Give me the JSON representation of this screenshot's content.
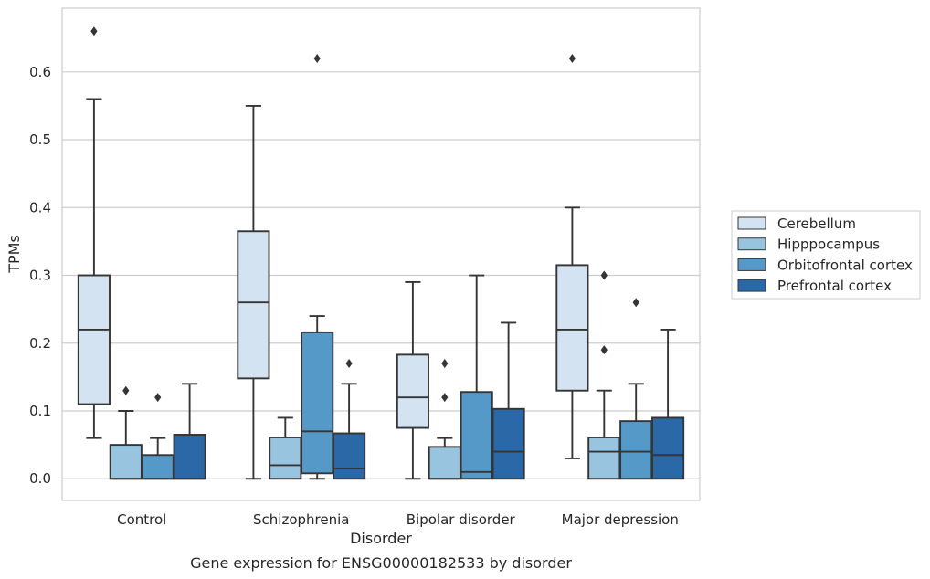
{
  "chart_data": {
    "type": "box",
    "caption": "Gene expression for ENSG00000182533 by disorder",
    "xlabel": "Disorder",
    "ylabel": "TPMs",
    "ylim": [
      -0.032,
      0.694
    ],
    "yticks": [
      "0.0",
      "0.1",
      "0.2",
      "0.3",
      "0.4",
      "0.5",
      "0.6"
    ],
    "grid": true,
    "legend_position": "right",
    "categories": [
      "Control",
      "Schizophrenia",
      "Bipolar disorder",
      "Major depression"
    ],
    "series": [
      {
        "name": "Cerebellum",
        "color": "#d3e3f1",
        "boxes": [
          {
            "whislo": 0.06,
            "q1": 0.11,
            "med": 0.22,
            "q3": 0.3,
            "whishi": 0.56,
            "fliers": [
              0.66
            ]
          },
          {
            "whislo": 0.0,
            "q1": 0.148,
            "med": 0.26,
            "q3": 0.365,
            "whishi": 0.55,
            "fliers": []
          },
          {
            "whislo": 0.0,
            "q1": 0.075,
            "med": 0.12,
            "q3": 0.183,
            "whishi": 0.29,
            "fliers": []
          },
          {
            "whislo": 0.03,
            "q1": 0.13,
            "med": 0.22,
            "q3": 0.315,
            "whishi": 0.4,
            "fliers": [
              0.62
            ]
          }
        ]
      },
      {
        "name": "Hipppocampus",
        "color": "#99c4e0",
        "boxes": [
          {
            "whislo": 0.0,
            "q1": 0.0,
            "med": 0.0,
            "q3": 0.05,
            "whishi": 0.1,
            "fliers": [
              0.13
            ]
          },
          {
            "whislo": 0.0,
            "q1": 0.0,
            "med": 0.02,
            "q3": 0.061,
            "whishi": 0.09,
            "fliers": []
          },
          {
            "whislo": 0.0,
            "q1": 0.0,
            "med": 0.0,
            "q3": 0.047,
            "whishi": 0.06,
            "fliers": [
              0.17,
              0.12
            ]
          },
          {
            "whislo": 0.0,
            "q1": 0.0,
            "med": 0.04,
            "q3": 0.061,
            "whishi": 0.13,
            "fliers": [
              0.3,
              0.19
            ]
          }
        ]
      },
      {
        "name": "Orbitofrontal cortex",
        "color": "#5599c8",
        "boxes": [
          {
            "whislo": 0.0,
            "q1": 0.0,
            "med": 0.0,
            "q3": 0.035,
            "whishi": 0.06,
            "fliers": [
              0.12
            ]
          },
          {
            "whislo": 0.0,
            "q1": 0.008,
            "med": 0.07,
            "q3": 0.216,
            "whishi": 0.24,
            "fliers": [
              0.62
            ]
          },
          {
            "whislo": 0.0,
            "q1": 0.0,
            "med": 0.01,
            "q3": 0.128,
            "whishi": 0.3,
            "fliers": []
          },
          {
            "whislo": 0.0,
            "q1": 0.0,
            "med": 0.04,
            "q3": 0.085,
            "whishi": 0.14,
            "fliers": [
              0.26
            ]
          }
        ]
      },
      {
        "name": "Prefrontal cortex",
        "color": "#2a68a8",
        "boxes": [
          {
            "whislo": 0.0,
            "q1": 0.0,
            "med": 0.0,
            "q3": 0.065,
            "whishi": 0.14,
            "fliers": []
          },
          {
            "whislo": 0.0,
            "q1": 0.0,
            "med": 0.015,
            "q3": 0.067,
            "whishi": 0.14,
            "fliers": [
              0.17
            ]
          },
          {
            "whislo": 0.0,
            "q1": 0.0,
            "med": 0.04,
            "q3": 0.103,
            "whishi": 0.23,
            "fliers": []
          },
          {
            "whislo": 0.0,
            "q1": 0.0,
            "med": 0.035,
            "q3": 0.09,
            "whishi": 0.22,
            "fliers": []
          }
        ]
      }
    ]
  }
}
